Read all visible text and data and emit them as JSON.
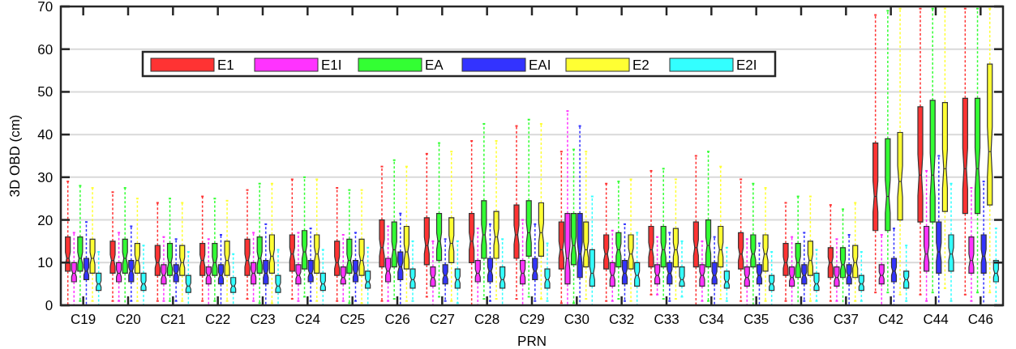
{
  "chart_data": {
    "type": "box",
    "xlabel": "PRN",
    "ylabel": "3D OBD (cm)",
    "categories": [
      "C19",
      "C20",
      "C21",
      "C22",
      "C23",
      "C24",
      "C25",
      "C26",
      "C27",
      "C28",
      "C29",
      "C30",
      "C32",
      "C33",
      "C34",
      "C35",
      "C36",
      "C37",
      "C42",
      "C44",
      "C46"
    ],
    "ylim": [
      0,
      70
    ],
    "yticks": [
      0,
      10,
      20,
      30,
      40,
      50,
      60,
      70
    ],
    "grid": "y",
    "legend": "top",
    "series": [
      {
        "name": "E1",
        "color": "#ff3333",
        "boxes": [
          {
            "low": 0,
            "q1": 8,
            "median": 11,
            "q3": 16,
            "high": 29
          },
          {
            "low": 1,
            "q1": 7.5,
            "median": 10.5,
            "q3": 15,
            "high": 26.5
          },
          {
            "low": 1,
            "q1": 7,
            "median": 10,
            "q3": 14,
            "high": 24
          },
          {
            "low": 1,
            "q1": 7,
            "median": 10.5,
            "q3": 14.5,
            "high": 25.5
          },
          {
            "low": 1.5,
            "q1": 7,
            "median": 10.5,
            "q3": 15.5,
            "high": 27
          },
          {
            "low": 1.5,
            "q1": 8,
            "median": 12,
            "q3": 16.5,
            "high": 29.5
          },
          {
            "low": 1,
            "q1": 7,
            "median": 10,
            "q3": 15,
            "high": 27.5
          },
          {
            "low": 1,
            "q1": 9,
            "median": 13.5,
            "q3": 20,
            "high": 32.5
          },
          {
            "low": 2,
            "q1": 9.5,
            "median": 14,
            "q3": 20.5,
            "high": 35.5
          },
          {
            "low": 0,
            "q1": 10,
            "median": 15,
            "q3": 21.5,
            "high": 38.5
          },
          {
            "low": 1.5,
            "q1": 11,
            "median": 16.5,
            "q3": 23.5,
            "high": 42
          },
          {
            "low": 0.5,
            "q1": 8.5,
            "median": 13,
            "q3": 19.5,
            "high": 36
          },
          {
            "low": 1,
            "q1": 8.5,
            "median": 12,
            "q3": 16.5,
            "high": 28.5
          },
          {
            "low": 2.5,
            "q1": 9,
            "median": 13,
            "q3": 18.5,
            "high": 31.5
          },
          {
            "low": 0,
            "q1": 9,
            "median": 13.5,
            "q3": 19.5,
            "high": 35
          },
          {
            "low": 1,
            "q1": 8.5,
            "median": 12,
            "q3": 17,
            "high": 29.5
          },
          {
            "low": 1,
            "q1": 7,
            "median": 10,
            "q3": 14.5,
            "high": 24
          },
          {
            "low": 1,
            "q1": 6.5,
            "median": 10,
            "q3": 13.5,
            "high": 23.5
          },
          {
            "low": 3,
            "q1": 17.5,
            "median": 25.5,
            "q3": 38,
            "high": 68
          },
          {
            "low": 2.5,
            "q1": 19.5,
            "median": 30.5,
            "q3": 46.5,
            "high": 69.5
          },
          {
            "low": 2.5,
            "q1": 21.5,
            "median": 32,
            "q3": 48.5,
            "high": 69.5
          }
        ]
      },
      {
        "name": "E1I",
        "color": "#ff33ff",
        "boxes": [
          {
            "low": 0,
            "q1": 5.5,
            "median": 7.5,
            "q3": 10,
            "high": 17
          },
          {
            "low": 1,
            "q1": 5.5,
            "median": 7.5,
            "q3": 10,
            "high": 17
          },
          {
            "low": 1,
            "q1": 5,
            "median": 7,
            "q3": 9.5,
            "high": 16
          },
          {
            "low": 0,
            "q1": 5,
            "median": 7,
            "q3": 9,
            "high": 15.5
          },
          {
            "low": 1,
            "q1": 5,
            "median": 7.5,
            "q3": 10,
            "high": 17
          },
          {
            "low": 1,
            "q1": 5,
            "median": 7,
            "q3": 9.5,
            "high": 17
          },
          {
            "low": 1,
            "q1": 5,
            "median": 6.5,
            "q3": 9,
            "high": 16.5
          },
          {
            "low": 1,
            "q1": 5.5,
            "median": 8,
            "q3": 11,
            "high": 18.5
          },
          {
            "low": 0,
            "q1": 4.5,
            "median": 6.5,
            "q3": 9,
            "high": 15
          },
          {
            "low": 0,
            "q1": 5.5,
            "median": 7.5,
            "q3": 10.5,
            "high": 18
          },
          {
            "low": 0,
            "q1": 5,
            "median": 7.5,
            "q3": 10.5,
            "high": 20
          },
          {
            "low": 0,
            "q1": 5,
            "median": 11,
            "q3": 21.5,
            "high": 45.5
          },
          {
            "low": 1,
            "q1": 4.5,
            "median": 7,
            "q3": 10,
            "high": 17.5
          },
          {
            "low": 2.5,
            "q1": 5,
            "median": 7,
            "q3": 9.5,
            "high": 16
          },
          {
            "low": 1,
            "q1": 4.5,
            "median": 7,
            "q3": 9.5,
            "high": 15
          },
          {
            "low": 0,
            "q1": 4.5,
            "median": 6.5,
            "q3": 9,
            "high": 15.5
          },
          {
            "low": 0,
            "q1": 4.5,
            "median": 6.5,
            "q3": 9,
            "high": 16
          },
          {
            "low": 1,
            "q1": 4.5,
            "median": 6.5,
            "q3": 9,
            "high": 15.5
          },
          {
            "low": 0,
            "q1": 5,
            "median": 7,
            "q3": 9.5,
            "high": 16.5
          },
          {
            "low": 1,
            "q1": 8,
            "median": 12,
            "q3": 18.5,
            "high": 31.5
          },
          {
            "low": 1,
            "q1": 7.5,
            "median": 10.5,
            "q3": 16,
            "high": 27.5
          }
        ]
      },
      {
        "name": "EA",
        "color": "#33ff33",
        "boxes": [
          {
            "low": 1,
            "q1": 8,
            "median": 11,
            "q3": 16,
            "high": 28
          },
          {
            "low": 0,
            "q1": 7.5,
            "median": 11,
            "q3": 15.5,
            "high": 27.5
          },
          {
            "low": 1,
            "q1": 7,
            "median": 10,
            "q3": 14.5,
            "high": 25
          },
          {
            "low": 1,
            "q1": 7,
            "median": 10,
            "q3": 14.5,
            "high": 25
          },
          {
            "low": 0.5,
            "q1": 7.5,
            "median": 11,
            "q3": 16,
            "high": 28.5
          },
          {
            "low": 2,
            "q1": 8.5,
            "median": 12.5,
            "q3": 17.5,
            "high": 30
          },
          {
            "low": 0.5,
            "q1": 7.5,
            "median": 10.5,
            "q3": 15.5,
            "high": 27
          },
          {
            "low": 1.5,
            "q1": 9,
            "median": 13,
            "q3": 19.5,
            "high": 34
          },
          {
            "low": 2,
            "q1": 10.5,
            "median": 15,
            "q3": 21.5,
            "high": 38
          },
          {
            "low": 1.5,
            "q1": 11,
            "median": 16.5,
            "q3": 24.5,
            "high": 42.5
          },
          {
            "low": 2,
            "q1": 11.5,
            "median": 17,
            "q3": 24.5,
            "high": 43.5
          },
          {
            "low": 0.5,
            "q1": 9.5,
            "median": 14,
            "q3": 21.5,
            "high": 36.5
          },
          {
            "low": 1.5,
            "q1": 9,
            "median": 13,
            "q3": 17,
            "high": 29
          },
          {
            "low": 1.5,
            "q1": 9,
            "median": 13,
            "q3": 18.5,
            "high": 32
          },
          {
            "low": 1,
            "q1": 9,
            "median": 14,
            "q3": 20,
            "high": 36
          },
          {
            "low": 0,
            "q1": 9,
            "median": 12,
            "q3": 16.5,
            "high": 28.5
          },
          {
            "low": 0,
            "q1": 6.5,
            "median": 10,
            "q3": 14.5,
            "high": 25.5
          },
          {
            "low": 0,
            "q1": 6.5,
            "median": 9.5,
            "q3": 13.5,
            "high": 22.5
          },
          {
            "low": 3,
            "q1": 17.5,
            "median": 25.5,
            "q3": 39,
            "high": 69
          },
          {
            "low": 3,
            "q1": 19.5,
            "median": 30.5,
            "q3": 48,
            "high": 69.5
          },
          {
            "low": 3,
            "q1": 21.5,
            "median": 32,
            "q3": 48.5,
            "high": 69.5
          }
        ]
      },
      {
        "name": "EAI",
        "color": "#3333ff",
        "boxes": [
          {
            "low": 0,
            "q1": 6,
            "median": 8,
            "q3": 11,
            "high": 19.5
          },
          {
            "low": 1,
            "q1": 5.5,
            "median": 8,
            "q3": 10.5,
            "high": 18.5
          },
          {
            "low": 1,
            "q1": 5.5,
            "median": 7.5,
            "q3": 9.5,
            "high": 15.5
          },
          {
            "low": 0,
            "q1": 5,
            "median": 7,
            "q3": 9.5,
            "high": 16.5
          },
          {
            "low": 0,
            "q1": 5,
            "median": 7.5,
            "q3": 10.5,
            "high": 19
          },
          {
            "low": 1,
            "q1": 5.5,
            "median": 7.5,
            "q3": 10.5,
            "high": 18
          },
          {
            "low": 1,
            "q1": 5.5,
            "median": 7.5,
            "q3": 10.5,
            "high": 17
          },
          {
            "low": 0,
            "q1": 6,
            "median": 9,
            "q3": 12.5,
            "high": 21.5
          },
          {
            "low": 1,
            "q1": 5,
            "median": 7,
            "q3": 9.5,
            "high": 15.5
          },
          {
            "low": 1,
            "q1": 5.5,
            "median": 8,
            "q3": 11,
            "high": 19
          },
          {
            "low": 1,
            "q1": 6,
            "median": 8,
            "q3": 11,
            "high": 19
          },
          {
            "low": 0,
            "q1": 6.5,
            "median": 12,
            "q3": 21.5,
            "high": 42
          },
          {
            "low": 1,
            "q1": 5,
            "median": 7.5,
            "q3": 10.5,
            "high": 19
          },
          {
            "low": 1,
            "q1": 5,
            "median": 7.5,
            "q3": 10,
            "high": 17
          },
          {
            "low": 0,
            "q1": 5,
            "median": 7,
            "q3": 10,
            "high": 16
          },
          {
            "low": 0,
            "q1": 5,
            "median": 7,
            "q3": 9.5,
            "high": 14.5
          },
          {
            "low": 1,
            "q1": 5,
            "median": 7,
            "q3": 9.5,
            "high": 17
          },
          {
            "low": 0,
            "q1": 5,
            "median": 7,
            "q3": 9.5,
            "high": 16.5
          },
          {
            "low": 0,
            "q1": 5.5,
            "median": 8,
            "q3": 11,
            "high": 18
          },
          {
            "low": 0,
            "q1": 7.5,
            "median": 12.5,
            "q3": 19.5,
            "high": 35
          },
          {
            "low": 0,
            "q1": 7.5,
            "median": 11.5,
            "q3": 16.5,
            "high": 29
          }
        ]
      },
      {
        "name": "E2",
        "color": "#ffff33",
        "boxes": [
          {
            "low": 1,
            "q1": 7.5,
            "median": 11,
            "q3": 15.5,
            "high": 27.5
          },
          {
            "low": 1,
            "q1": 7.5,
            "median": 10.5,
            "q3": 14.5,
            "high": 25
          },
          {
            "low": 1,
            "q1": 7,
            "median": 10,
            "q3": 14,
            "high": 24
          },
          {
            "low": 1,
            "q1": 7,
            "median": 10.5,
            "q3": 15,
            "high": 24.5
          },
          {
            "low": 0.5,
            "q1": 7.5,
            "median": 11.5,
            "q3": 16.5,
            "high": 28.5
          },
          {
            "low": 1,
            "q1": 7.5,
            "median": 12,
            "q3": 16.5,
            "high": 29.5
          },
          {
            "low": 0.5,
            "q1": 7,
            "median": 10.5,
            "q3": 15.5,
            "high": 27
          },
          {
            "low": 1,
            "q1": 8.5,
            "median": 12.5,
            "q3": 18.5,
            "high": 32.5
          },
          {
            "low": 1,
            "q1": 10,
            "median": 14.5,
            "q3": 20.5,
            "high": 36
          },
          {
            "low": 1.5,
            "q1": 11,
            "median": 16,
            "q3": 22,
            "high": 38.5
          },
          {
            "low": 1.5,
            "q1": 11.5,
            "median": 17,
            "q3": 24,
            "high": 42.5
          },
          {
            "low": 1.5,
            "q1": 9,
            "median": 13,
            "q3": 19.5,
            "high": 36
          },
          {
            "low": 1,
            "q1": 8.5,
            "median": 12,
            "q3": 16.5,
            "high": 29.5
          },
          {
            "low": 1.5,
            "q1": 9,
            "median": 13,
            "q3": 18,
            "high": 29.5
          },
          {
            "low": 1.5,
            "q1": 9,
            "median": 13,
            "q3": 18.5,
            "high": 32.5
          },
          {
            "low": 1,
            "q1": 8,
            "median": 12,
            "q3": 16.5,
            "high": 27.5
          },
          {
            "low": 1,
            "q1": 7,
            "median": 10.5,
            "q3": 15,
            "high": 25.5
          },
          {
            "low": 1,
            "q1": 6.5,
            "median": 10,
            "q3": 14,
            "high": 24
          },
          {
            "low": 2.5,
            "q1": 20,
            "median": 29,
            "q3": 40.5,
            "high": 69.5
          },
          {
            "low": 4,
            "q1": 22,
            "median": 32,
            "q3": 47.5,
            "high": 69.5
          },
          {
            "low": 3,
            "q1": 23.5,
            "median": 36,
            "q3": 56.5,
            "high": 69.5
          }
        ]
      },
      {
        "name": "E2I",
        "color": "#33ffff",
        "boxes": [
          {
            "low": 0,
            "q1": 3.5,
            "median": 5,
            "q3": 7.5,
            "high": 12.5
          },
          {
            "low": 0,
            "q1": 3.5,
            "median": 5,
            "q3": 7.5,
            "high": 14
          },
          {
            "low": 0,
            "q1": 3,
            "median": 4.5,
            "q3": 7,
            "high": 12.5
          },
          {
            "low": 0,
            "q1": 3,
            "median": 4.5,
            "q3": 6.5,
            "high": 12
          },
          {
            "low": 0,
            "q1": 3,
            "median": 4.5,
            "q3": 7,
            "high": 13
          },
          {
            "low": 0,
            "q1": 3.5,
            "median": 5,
            "q3": 7.5,
            "high": 13
          },
          {
            "low": 0,
            "q1": 4,
            "median": 5.5,
            "q3": 8,
            "high": 13.5
          },
          {
            "low": 1,
            "q1": 4,
            "median": 6,
            "q3": 8.5,
            "high": 15
          },
          {
            "low": 0.5,
            "q1": 4,
            "median": 6,
            "q3": 8.5,
            "high": 15
          },
          {
            "low": 0,
            "q1": 4,
            "median": 6,
            "q3": 9,
            "high": 15.5
          },
          {
            "low": 1,
            "q1": 4,
            "median": 6,
            "q3": 8.5,
            "high": 14.5
          },
          {
            "low": 0,
            "q1": 4.5,
            "median": 7.5,
            "q3": 13,
            "high": 25.5
          },
          {
            "low": 0,
            "q1": 4.5,
            "median": 7,
            "q3": 10,
            "high": 17
          },
          {
            "low": 2,
            "q1": 4.5,
            "median": 6,
            "q3": 9,
            "high": 15
          },
          {
            "low": 1,
            "q1": 4,
            "median": 5.5,
            "q3": 8,
            "high": 13.5
          },
          {
            "low": 0,
            "q1": 3.5,
            "median": 5,
            "q3": 7,
            "high": 12.5
          },
          {
            "low": 1,
            "q1": 3.5,
            "median": 5,
            "q3": 7.5,
            "high": 13
          },
          {
            "low": 1,
            "q1": 3.5,
            "median": 5,
            "q3": 7,
            "high": 12.5
          },
          {
            "low": 1,
            "q1": 4,
            "median": 6,
            "q3": 8,
            "high": 14
          },
          {
            "low": 1,
            "q1": 8,
            "median": 12,
            "q3": 16.5,
            "high": 28.5
          },
          {
            "low": 0,
            "q1": 5.5,
            "median": 7.5,
            "q3": 10.5,
            "high": 18
          }
        ]
      }
    ]
  }
}
